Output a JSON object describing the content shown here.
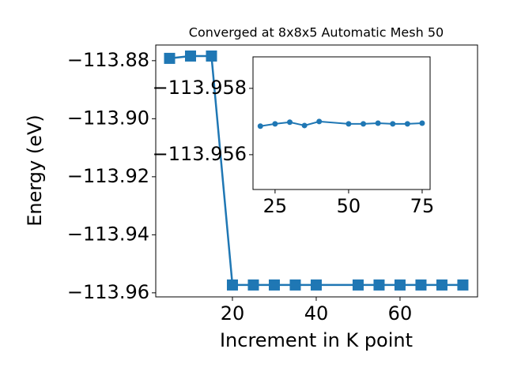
{
  "chart_data": [
    {
      "type": "line",
      "title": "Converged at 8x8x5 Automatic Mesh 50",
      "x_label": "Increment in K point",
      "y_label": "Energy (eV)",
      "x": [
        5,
        10,
        15,
        20,
        25,
        30,
        35,
        40,
        50,
        55,
        60,
        65,
        70,
        75
      ],
      "series": [
        {
          "color": "#1f77b4",
          "marker": "square",
          "values": [
            -113.8792,
            -113.8784,
            -113.8784,
            -113.9573,
            -113.9573,
            -113.9573,
            -113.9573,
            -113.9573,
            -113.9573,
            -113.9573,
            -113.9573,
            -113.9573,
            -113.9573,
            -113.9573
          ]
        }
      ],
      "xlim": [
        1.7,
        78.5
      ],
      "ylim": [
        -113.9614,
        -113.8746
      ],
      "xticks": [
        20,
        40,
        60
      ],
      "yticks": [
        {
          "value": -113.88,
          "label": "−113.88"
        },
        {
          "value": -113.9,
          "label": "−113.90"
        },
        {
          "value": -113.92,
          "label": "−113.92"
        },
        {
          "value": -113.94,
          "label": "−113.94"
        },
        {
          "value": -113.96,
          "label": "−113.96"
        }
      ]
    },
    {
      "type": "line",
      "x": [
        20,
        25,
        30,
        35,
        40,
        50,
        55,
        60,
        65,
        70,
        75
      ],
      "series": [
        {
          "color": "#1f77b4",
          "marker": "circle",
          "values": [
            -113.95686,
            -113.95693,
            -113.95698,
            -113.95688,
            -113.957,
            -113.95693,
            -113.95693,
            -113.95695,
            -113.95693,
            -113.95693,
            -113.95695
          ]
        }
      ],
      "xlim": [
        17.5,
        77.7
      ],
      "ylim": [
        -113.95495,
        -113.95895
      ],
      "xticks": [
        25,
        50,
        75
      ],
      "yticks": [
        {
          "value": -113.958,
          "label": "−113.958"
        },
        {
          "value": -113.956,
          "label": "−113.956"
        }
      ]
    }
  ]
}
